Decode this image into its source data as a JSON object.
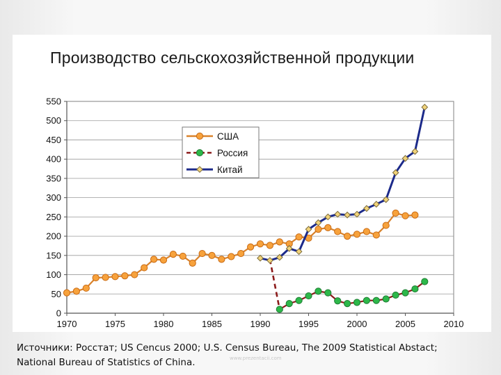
{
  "slide": {
    "title": "Производство сельскохозяйственной продукции",
    "source_line1": "Источники: Росстат; US Cencus 2000; U.S. Census Bureau, The 2009 Statistical Abstact;",
    "source_line2": "National Bureau of Statistics of China.",
    "watermark": "www.prezentacii.com"
  },
  "chart_data": {
    "type": "line",
    "title": "Производство сельскохозяйственной продукции",
    "xlabel": "",
    "ylabel": "",
    "xlim": [
      1970,
      2010
    ],
    "ylim": [
      0,
      550
    ],
    "x_ticks": [
      1970,
      1975,
      1980,
      1985,
      1990,
      1995,
      2000,
      2005,
      2010
    ],
    "y_ticks": [
      0,
      50,
      100,
      150,
      200,
      250,
      300,
      350,
      400,
      450,
      500,
      550
    ],
    "grid": "horizontal",
    "legend_position": "top-left",
    "series": [
      {
        "name": "США",
        "color": "#d9822b",
        "marker_fill": "#f7a23c",
        "marker": "circle",
        "line_style": "solid",
        "points": [
          [
            1970,
            53
          ],
          [
            1971,
            57
          ],
          [
            1972,
            65
          ],
          [
            1973,
            92
          ],
          [
            1974,
            93
          ],
          [
            1975,
            95
          ],
          [
            1976,
            97
          ],
          [
            1977,
            100
          ],
          [
            1978,
            118
          ],
          [
            1979,
            140
          ],
          [
            1980,
            138
          ],
          [
            1981,
            153
          ],
          [
            1982,
            148
          ],
          [
            1983,
            130
          ],
          [
            1984,
            155
          ],
          [
            1985,
            150
          ],
          [
            1986,
            140
          ],
          [
            1987,
            147
          ],
          [
            1988,
            155
          ],
          [
            1989,
            172
          ],
          [
            1990,
            180
          ],
          [
            1991,
            176
          ],
          [
            1992,
            185
          ],
          [
            1993,
            180
          ],
          [
            1994,
            198
          ],
          [
            1995,
            195
          ],
          [
            1996,
            218
          ],
          [
            1997,
            222
          ],
          [
            1998,
            212
          ],
          [
            1999,
            200
          ],
          [
            2000,
            205
          ],
          [
            2001,
            212
          ],
          [
            2002,
            203
          ],
          [
            2003,
            228
          ],
          [
            2004,
            260
          ],
          [
            2005,
            253
          ],
          [
            2006,
            255
          ]
        ]
      },
      {
        "name": "Россия",
        "color": "#8b1a1a",
        "marker_fill": "#2db84a",
        "marker": "circle",
        "line_style": "dashed",
        "connector": [
          [
            1991,
            140
          ],
          [
            1992,
            10
          ]
        ],
        "points": [
          [
            1992,
            10
          ],
          [
            1993,
            25
          ],
          [
            1994,
            33
          ],
          [
            1995,
            45
          ],
          [
            1996,
            57
          ],
          [
            1997,
            53
          ],
          [
            1998,
            32
          ],
          [
            1999,
            25
          ],
          [
            2000,
            28
          ],
          [
            2001,
            33
          ],
          [
            2002,
            33
          ],
          [
            2003,
            37
          ],
          [
            2004,
            47
          ],
          [
            2005,
            53
          ],
          [
            2006,
            63
          ],
          [
            2007,
            82
          ]
        ]
      },
      {
        "name": "Китай",
        "color": "#1c2a8a",
        "marker_fill": "#f1d37a",
        "marker": "diamond",
        "line_style": "solid",
        "points": [
          [
            1990,
            143
          ],
          [
            1991,
            137
          ],
          [
            1992,
            145
          ],
          [
            1993,
            168
          ],
          [
            1994,
            160
          ],
          [
            1995,
            218
          ],
          [
            1996,
            235
          ],
          [
            1997,
            250
          ],
          [
            1998,
            257
          ],
          [
            1999,
            255
          ],
          [
            2000,
            257
          ],
          [
            2001,
            272
          ],
          [
            2002,
            283
          ],
          [
            2003,
            295
          ],
          [
            2004,
            365
          ],
          [
            2005,
            402
          ],
          [
            2006,
            420
          ],
          [
            2007,
            535
          ]
        ]
      }
    ]
  }
}
